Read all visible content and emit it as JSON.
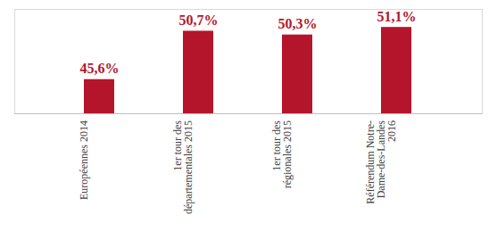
{
  "chart_data": {
    "type": "bar",
    "categories": [
      "Européennes 2014",
      "1er tour des départementales 2015",
      "1er tour des régionales 2015",
      "Référendum Notre-Dame-des-Landes 2016"
    ],
    "values": [
      45.6,
      50.7,
      50.3,
      51.1
    ],
    "value_labels": [
      "45,6%",
      "50,7%",
      "50,3%",
      "51,1%"
    ],
    "color": "#b5152b",
    "ylim": [
      42,
      53
    ],
    "grid": false,
    "data_labels": true,
    "tick_labels": "x"
  }
}
